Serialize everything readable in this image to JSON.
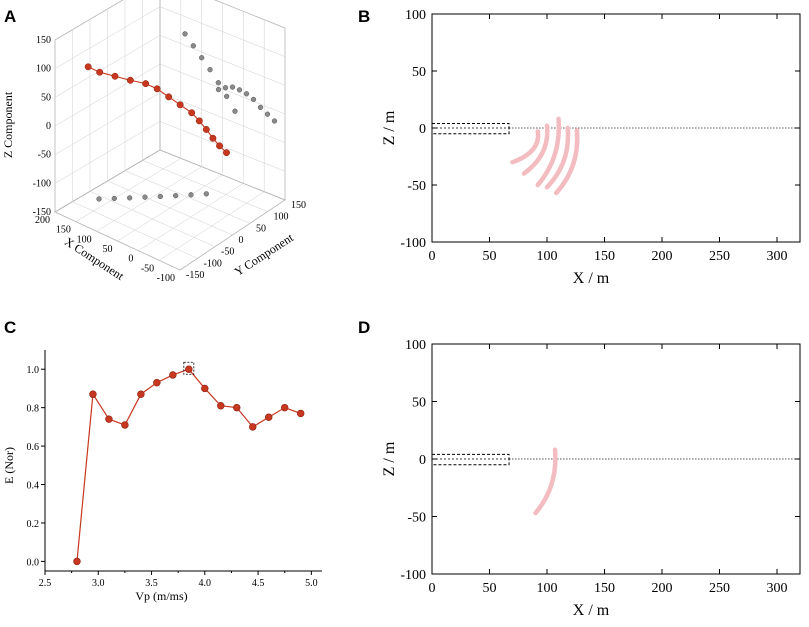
{
  "panels": [
    {
      "letter": "A"
    },
    {
      "letter": "B"
    },
    {
      "letter": "C"
    },
    {
      "letter": "D"
    }
  ],
  "colors": {
    "red": "#c8371f",
    "gray": "#8a8a8a",
    "pink": "#f2bcc1",
    "grid": "#cfcfcf",
    "dotted": "#555555"
  },
  "chart_data": [
    {
      "panel": "A",
      "type": "scatter",
      "title": "",
      "xlabel": "X Component",
      "ylabel": "Y Component",
      "zlabel": "Z Component",
      "xticks": [
        200,
        150,
        100,
        50,
        0,
        -50,
        -100
      ],
      "yticks": [
        -150,
        -100,
        -50,
        0,
        50,
        100,
        150
      ],
      "zticks": [
        -150,
        -100,
        -50,
        0,
        50,
        100,
        150
      ],
      "xlim": [
        -100,
        200
      ],
      "ylim": [
        -150,
        150
      ],
      "zlim": [
        -150,
        150
      ],
      "series": [
        {
          "name": "trajectory",
          "color": "red",
          "points": [
            [
              175,
              -85,
              88
            ],
            [
              160,
              -70,
              78
            ],
            [
              140,
              -50,
              70
            ],
            [
              120,
              -30,
              62
            ],
            [
              100,
              -10,
              55
            ],
            [
              85,
              5,
              45
            ],
            [
              70,
              20,
              30
            ],
            [
              55,
              35,
              15
            ],
            [
              40,
              50,
              0
            ],
            [
              30,
              60,
              -15
            ],
            [
              20,
              68,
              -30
            ],
            [
              10,
              75,
              -45
            ],
            [
              0,
              82,
              -58
            ],
            [
              -10,
              90,
              -70
            ]
          ]
        },
        {
          "name": "xz-projection",
          "color": "gray",
          "points": [
            [
              140,
              150,
              70
            ],
            [
              120,
              150,
              55
            ],
            [
              100,
              150,
              40
            ],
            [
              80,
              150,
              25
            ],
            [
              60,
              150,
              8
            ],
            [
              40,
              150,
              -10
            ],
            [
              20,
              150,
              -30
            ]
          ]
        },
        {
          "name": "yz-projection",
          "color": "gray",
          "points": [
            [
              -100,
              -40,
              120
            ],
            [
              -100,
              -20,
              115
            ],
            [
              -100,
              0,
              108
            ],
            [
              -100,
              20,
              95
            ],
            [
              -100,
              40,
              80
            ],
            [
              -100,
              60,
              62
            ],
            [
              -100,
              80,
              40
            ],
            [
              -100,
              100,
              20
            ],
            [
              -100,
              120,
              0
            ]
          ]
        },
        {
          "name": "xy-projection",
          "color": "gray",
          "points": [
            [
              170,
              -60,
              -150
            ],
            [
              150,
              -40,
              -150
            ],
            [
              130,
              -20,
              -150
            ],
            [
              110,
              0,
              -150
            ],
            [
              90,
              20,
              -150
            ],
            [
              70,
              40,
              -150
            ],
            [
              50,
              60,
              -150
            ],
            [
              30,
              80,
              -150
            ]
          ]
        }
      ]
    },
    {
      "panel": "B",
      "type": "scatter",
      "title": "",
      "xlabel": "X / m",
      "ylabel": "Z / m",
      "xticks": [
        0,
        50,
        100,
        150,
        200,
        250,
        300
      ],
      "yticks": [
        -100,
        -50,
        0,
        50,
        100
      ],
      "xlim": [
        0,
        320
      ],
      "ylim": [
        -100,
        100
      ],
      "box": {
        "x": [
          0,
          67
        ],
        "y": [
          -5,
          4
        ]
      },
      "baseline_z": 0,
      "arcs": [
        {
          "top": [
            92,
            -3
          ],
          "bottom": [
            70,
            -30
          ]
        },
        {
          "top": [
            100,
            2
          ],
          "bottom": [
            80,
            -40
          ]
        },
        {
          "top": [
            110,
            8
          ],
          "bottom": [
            92,
            -50
          ]
        },
        {
          "top": [
            118,
            0
          ],
          "bottom": [
            100,
            -52
          ]
        },
        {
          "top": [
            126,
            -2
          ],
          "bottom": [
            108,
            -57
          ]
        }
      ]
    },
    {
      "panel": "C",
      "type": "line",
      "title": "",
      "xlabel": "Vp (m/ms)",
      "ylabel": "E (Nor)",
      "xticks": [
        2.5,
        3.0,
        3.5,
        4.0,
        4.5,
        5.0
      ],
      "xtick_labels": [
        "2.5",
        "3.0",
        "3.5",
        "4.0",
        "4.5",
        "5.0"
      ],
      "yticks": [
        0.0,
        0.2,
        0.4,
        0.6,
        0.8,
        1.0
      ],
      "ytick_labels": [
        "0.0",
        "0.2",
        "0.4",
        "0.6",
        "0.8",
        "1.0"
      ],
      "xlim": [
        2.5,
        5.1
      ],
      "ylim": [
        -0.05,
        1.1
      ],
      "x": [
        2.8,
        2.95,
        3.1,
        3.25,
        3.4,
        3.55,
        3.7,
        3.85,
        4.0,
        4.15,
        4.3,
        4.45,
        4.6,
        4.75,
        4.9
      ],
      "y": [
        0.0,
        0.87,
        0.74,
        0.71,
        0.87,
        0.93,
        0.97,
        1.0,
        0.9,
        0.81,
        0.8,
        0.7,
        0.75,
        0.8,
        0.77
      ],
      "highlight_x": 3.85
    },
    {
      "panel": "D",
      "type": "scatter",
      "title": "",
      "xlabel": "X / m",
      "ylabel": "Z / m",
      "xticks": [
        0,
        50,
        100,
        150,
        200,
        250,
        300
      ],
      "yticks": [
        -100,
        -50,
        0,
        50,
        100
      ],
      "xlim": [
        0,
        320
      ],
      "ylim": [
        -100,
        100
      ],
      "box": {
        "x": [
          0,
          67
        ],
        "y": [
          -5,
          4
        ]
      },
      "baseline_z": 0,
      "arcs": [
        {
          "top": [
            107,
            8
          ],
          "bottom": [
            90,
            -47
          ]
        }
      ]
    }
  ]
}
